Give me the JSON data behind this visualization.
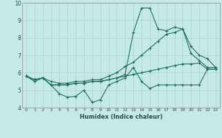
{
  "title": "",
  "xlabel": "Humidex (Indice chaleur)",
  "xlim": [
    -0.5,
    23.5
  ],
  "ylim": [
    4,
    10
  ],
  "yticks": [
    4,
    5,
    6,
    7,
    8,
    9,
    10
  ],
  "xticks": [
    0,
    1,
    2,
    3,
    4,
    5,
    6,
    7,
    8,
    9,
    10,
    11,
    12,
    13,
    14,
    15,
    16,
    17,
    18,
    19,
    20,
    21,
    22,
    23
  ],
  "background_color": "#c5e8e8",
  "grid_color": "#afd4d4",
  "line_color": "#1a6b5a",
  "series": [
    [
      5.8,
      5.5,
      5.7,
      5.3,
      4.8,
      4.6,
      4.65,
      5.0,
      4.3,
      4.45,
      5.3,
      5.5,
      5.7,
      6.3,
      5.5,
      5.1,
      5.3,
      5.3,
      5.3,
      5.3,
      5.3,
      5.3,
      6.2,
      6.2
    ],
    [
      5.8,
      5.6,
      5.7,
      5.3,
      5.3,
      5.3,
      5.4,
      5.4,
      5.5,
      5.5,
      5.6,
      5.7,
      5.8,
      5.9,
      6.0,
      6.1,
      6.2,
      6.3,
      6.4,
      6.5,
      6.5,
      6.55,
      6.2,
      6.2
    ],
    [
      5.8,
      5.6,
      5.7,
      5.5,
      5.4,
      5.4,
      5.5,
      5.5,
      5.6,
      5.6,
      5.8,
      6.0,
      6.35,
      6.6,
      7.0,
      7.4,
      7.8,
      8.2,
      8.3,
      8.5,
      7.5,
      7.0,
      6.8,
      6.3
    ],
    [
      5.8,
      5.6,
      5.7,
      5.3,
      5.3,
      5.3,
      5.4,
      5.4,
      5.5,
      5.5,
      5.6,
      5.7,
      5.9,
      8.3,
      9.7,
      9.7,
      8.5,
      8.4,
      8.6,
      8.5,
      7.1,
      6.7,
      6.3,
      6.3
    ]
  ]
}
